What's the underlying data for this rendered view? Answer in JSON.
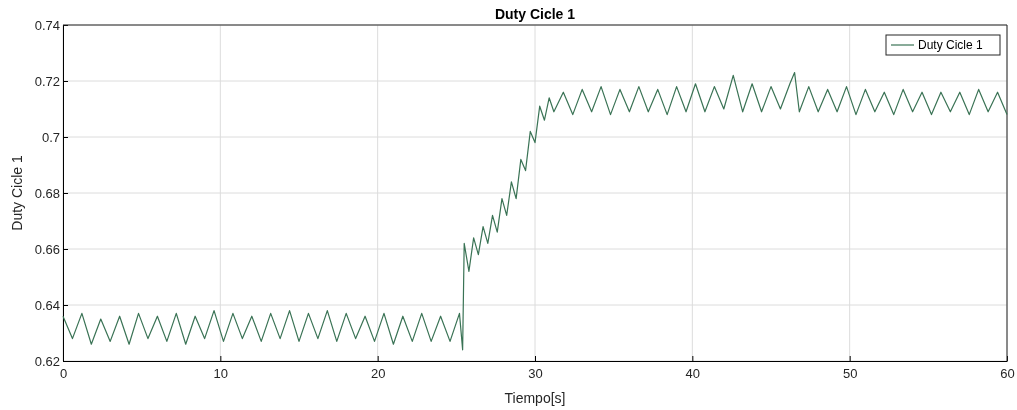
{
  "chart_data": {
    "type": "line",
    "title": "Duty Cicle 1",
    "xlabel": "Tiempo[s]",
    "ylabel": "Duty Cicle 1",
    "xlim": [
      0,
      60
    ],
    "ylim": [
      0.62,
      0.74
    ],
    "xticks": [
      0,
      10,
      20,
      30,
      40,
      50,
      60
    ],
    "yticks": [
      0.62,
      0.64,
      0.66,
      0.68,
      0.7,
      0.72,
      0.74
    ],
    "grid": true,
    "legend": "top right",
    "marker": "none",
    "line_style": "solid",
    "series": [
      {
        "name": "Duty Cicle 1",
        "color": "#3a7355",
        "x": [
          0,
          0.6,
          1.2,
          1.8,
          2.4,
          3,
          3.6,
          4.2,
          4.8,
          5.4,
          6,
          6.6,
          7.2,
          7.8,
          8.4,
          9,
          9.6,
          10.2,
          10.8,
          11.4,
          12,
          12.6,
          13.2,
          13.8,
          14.4,
          15,
          15.6,
          16.2,
          16.8,
          17.4,
          18,
          18.6,
          19.2,
          19.8,
          20.4,
          21,
          21.6,
          22.2,
          22.8,
          23.4,
          24,
          24.6,
          25.2,
          25.4,
          25.5,
          25.8,
          26.1,
          26.4,
          26.7,
          27,
          27.3,
          27.6,
          27.9,
          28.2,
          28.5,
          28.8,
          29.1,
          29.4,
          29.7,
          30,
          30.3,
          30.6,
          30.9,
          31.2,
          31.8,
          32.4,
          33,
          33.6,
          34.2,
          34.8,
          35.4,
          36,
          36.6,
          37.2,
          37.8,
          38.4,
          39,
          39.6,
          40.2,
          40.8,
          41.4,
          42,
          42.6,
          43.2,
          43.8,
          44.4,
          45,
          45.6,
          46.2,
          46.5,
          46.8,
          47.4,
          48,
          48.6,
          49.2,
          49.8,
          50.4,
          51,
          51.6,
          52.2,
          52.8,
          53.4,
          54,
          54.6,
          55.2,
          55.8,
          56.4,
          57,
          57.6,
          58.2,
          58.8,
          59.4,
          60
        ],
        "values": [
          0.636,
          0.628,
          0.637,
          0.626,
          0.635,
          0.627,
          0.636,
          0.626,
          0.637,
          0.628,
          0.636,
          0.627,
          0.637,
          0.626,
          0.636,
          0.628,
          0.638,
          0.627,
          0.637,
          0.628,
          0.636,
          0.627,
          0.637,
          0.628,
          0.638,
          0.627,
          0.637,
          0.628,
          0.638,
          0.627,
          0.637,
          0.628,
          0.636,
          0.627,
          0.637,
          0.626,
          0.636,
          0.627,
          0.637,
          0.627,
          0.636,
          0.627,
          0.637,
          0.624,
          0.662,
          0.652,
          0.664,
          0.658,
          0.668,
          0.662,
          0.672,
          0.666,
          0.678,
          0.672,
          0.684,
          0.678,
          0.692,
          0.688,
          0.702,
          0.698,
          0.711,
          0.706,
          0.714,
          0.709,
          0.716,
          0.708,
          0.717,
          0.709,
          0.718,
          0.708,
          0.717,
          0.709,
          0.718,
          0.709,
          0.717,
          0.708,
          0.718,
          0.709,
          0.719,
          0.709,
          0.718,
          0.71,
          0.722,
          0.709,
          0.719,
          0.709,
          0.718,
          0.71,
          0.719,
          0.723,
          0.709,
          0.718,
          0.709,
          0.717,
          0.709,
          0.718,
          0.708,
          0.717,
          0.709,
          0.716,
          0.708,
          0.717,
          0.709,
          0.716,
          0.708,
          0.716,
          0.709,
          0.716,
          0.708,
          0.717,
          0.709,
          0.716,
          0.708
        ]
      }
    ]
  }
}
